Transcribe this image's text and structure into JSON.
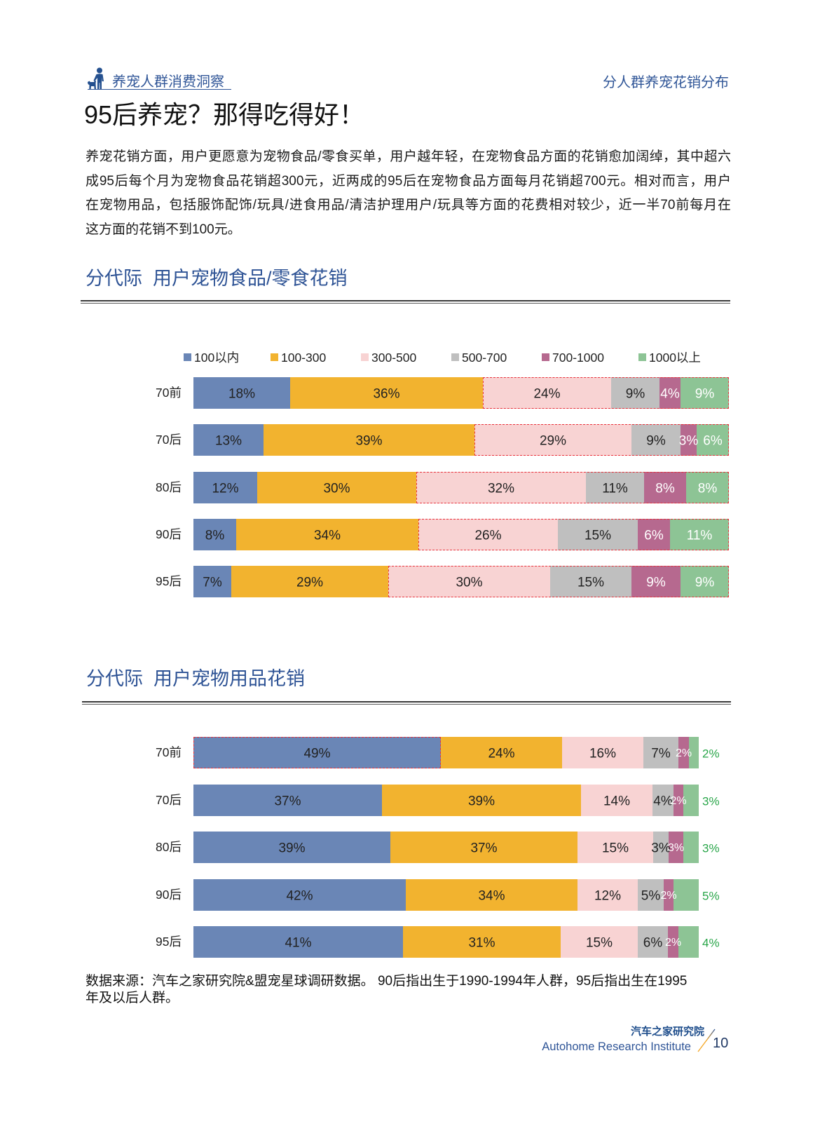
{
  "header": {
    "left_title": "养宠人群消费洞察",
    "right_title": "分人群养宠花销分布",
    "icon": "pet-owner-icon"
  },
  "page_title": "95后养宠？那得吃得好！",
  "intro_lines": [
    "养宠花销方面，用户更愿意为宠物食品/零食买单，用户越年轻，在宠物食品方面的花销愈加阔绰，其中超六",
    "成95后每个月为宠物食品花销超300元，近两成的95后在宠物食品方面每月花销超700元。相对而言，用户",
    "在宠物用品，包括服饰配饰/玩具/进食用品/清洁护理用户/玩具等方面的花费相对较少，近一半70前每月在",
    "这方面的花销不到100元。"
  ],
  "series_colors": [
    "#6a86b6",
    "#f2b32f",
    "#f8d3d3",
    "#bfbfbf",
    "#b6698f",
    "#8dc495"
  ],
  "colors": {
    "highlight_red": "#e8323c",
    "outside_label_green": "#2aa64a",
    "label_default": "#222222",
    "label_light": "#ffffff"
  },
  "chart_data": [
    {
      "type": "bar",
      "horizontal": true,
      "stacked": true,
      "title": "分代际  用户宠物食品/零食花销",
      "legend_position": "top",
      "categories": [
        "70前",
        "70后",
        "80后",
        "90后",
        "95后"
      ],
      "value_suffix": "%",
      "series": [
        {
          "name": "100以内",
          "values": [
            18,
            13,
            12,
            8,
            7
          ]
        },
        {
          "name": "100-300",
          "values": [
            36,
            39,
            30,
            34,
            29
          ]
        },
        {
          "name": "300-500",
          "values": [
            24,
            29,
            32,
            26,
            30
          ]
        },
        {
          "name": "500-700",
          "values": [
            9,
            9,
            11,
            15,
            15
          ]
        },
        {
          "name": "700-1000",
          "values": [
            4,
            3,
            8,
            6,
            9
          ]
        },
        {
          "name": "1000以上",
          "values": [
            9,
            6,
            8,
            11,
            9
          ]
        }
      ],
      "highlight": {
        "rows": [
          0,
          1,
          2,
          3,
          4
        ],
        "series_from": 2,
        "series_to": 5
      }
    },
    {
      "type": "bar",
      "horizontal": true,
      "stacked": true,
      "title": "分代际  用户宠物用品花销",
      "categories": [
        "70前",
        "70后",
        "80后",
        "90后",
        "95后"
      ],
      "value_suffix": "%",
      "series": [
        {
          "values": [
            49,
            37,
            39,
            42,
            41
          ]
        },
        {
          "values": [
            24,
            39,
            37,
            34,
            31
          ]
        },
        {
          "values": [
            16,
            14,
            15,
            12,
            15
          ]
        },
        {
          "values": [
            7,
            4,
            3,
            5,
            6
          ]
        },
        {
          "values": [
            2,
            2,
            3,
            2,
            2
          ]
        },
        {
          "values": [
            2,
            3,
            3,
            5,
            4
          ]
        }
      ],
      "highlight": {
        "rows": [
          0
        ],
        "series_from": 0,
        "series_to": 0
      }
    }
  ],
  "footnote_lines": [
    "数据来源：汽车之家研究院&盟宠星球调研数据。 90后指出生于1990-1994年人群，95后指出生在1995",
    "年及以后人群。"
  ],
  "footer": {
    "org_cn": "汽车之家研究院",
    "org_en": "Autohome Research Institute",
    "page_number": "10"
  }
}
